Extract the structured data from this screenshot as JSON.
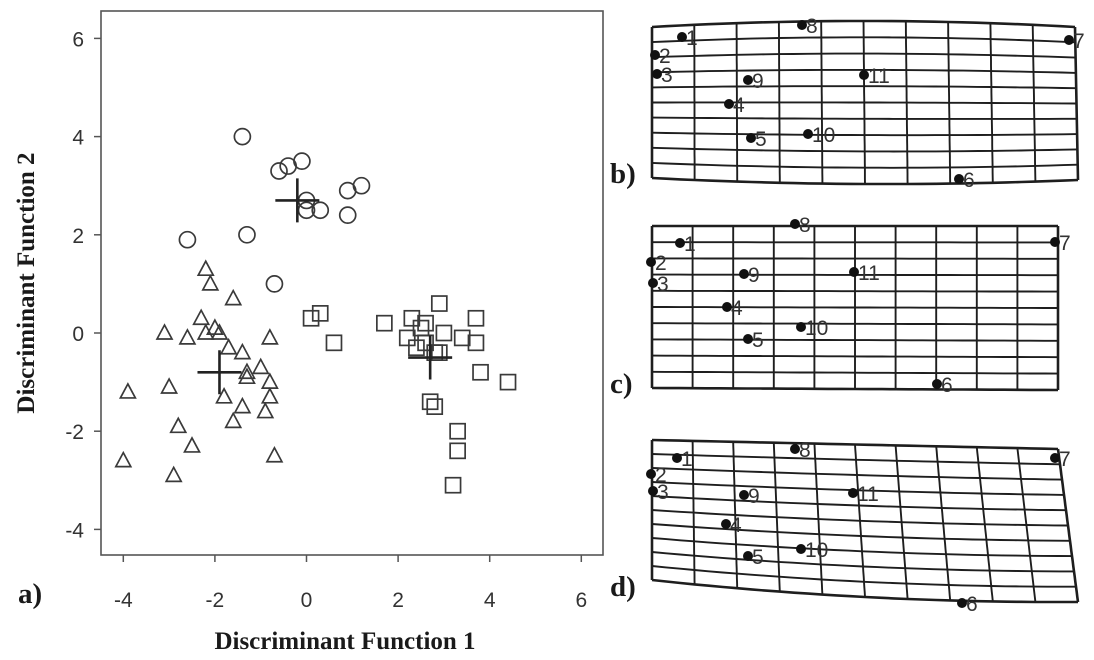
{
  "chart_data": [
    {
      "type": "scatter",
      "panel_label": "a)",
      "xlabel": "Discriminant Function 1",
      "ylabel": "Discriminant Function 2",
      "xlim": [
        -4.5,
        6.5
      ],
      "ylim": [
        -4.5,
        6.5
      ],
      "xticks": [
        -4,
        -2,
        0,
        2,
        4,
        6
      ],
      "yticks": [
        -4,
        -2,
        0,
        2,
        4,
        6
      ],
      "tick_labels_x": [
        "-4",
        "-2",
        "0",
        "2",
        "4",
        "6"
      ],
      "tick_labels_y": [
        "-4",
        "-2",
        "0",
        "2",
        "4",
        "6"
      ],
      "grid": false,
      "series": [
        {
          "marker": "circle",
          "centroid": [
            -0.2,
            2.7
          ],
          "points": [
            [
              -1.4,
              4.0
            ],
            [
              -0.6,
              3.3
            ],
            [
              -0.4,
              3.4
            ],
            [
              -0.1,
              3.5
            ],
            [
              0.0,
              2.7
            ],
            [
              0.0,
              2.5
            ],
            [
              0.3,
              2.5
            ],
            [
              0.9,
              2.9
            ],
            [
              1.2,
              3.0
            ],
            [
              0.9,
              2.4
            ],
            [
              -2.6,
              1.9
            ],
            [
              -1.3,
              2.0
            ],
            [
              -0.7,
              1.0
            ]
          ]
        },
        {
          "marker": "triangle",
          "centroid": [
            -1.9,
            -0.8
          ],
          "points": [
            [
              -2.2,
              1.3
            ],
            [
              -2.1,
              1.0
            ],
            [
              -1.6,
              0.7
            ],
            [
              -2.3,
              0.3
            ],
            [
              -3.1,
              0.0
            ],
            [
              -2.6,
              -0.1
            ],
            [
              -2.2,
              0.0
            ],
            [
              -2.0,
              0.1
            ],
            [
              -1.9,
              0.0
            ],
            [
              -0.8,
              -0.1
            ],
            [
              -1.7,
              -0.3
            ],
            [
              -1.4,
              -0.4
            ],
            [
              -1.3,
              -0.8
            ],
            [
              -1.0,
              -0.7
            ],
            [
              -1.3,
              -0.9
            ],
            [
              -0.8,
              -1.0
            ],
            [
              -3.9,
              -1.2
            ],
            [
              -3.0,
              -1.1
            ],
            [
              -1.8,
              -1.3
            ],
            [
              -0.8,
              -1.3
            ],
            [
              -1.4,
              -1.5
            ],
            [
              -1.6,
              -1.8
            ],
            [
              -0.9,
              -1.6
            ],
            [
              -2.8,
              -1.9
            ],
            [
              -2.5,
              -2.3
            ],
            [
              -0.7,
              -2.5
            ],
            [
              -4.0,
              -2.6
            ],
            [
              -2.9,
              -2.9
            ]
          ]
        },
        {
          "marker": "square",
          "centroid": [
            2.7,
            -0.5
          ],
          "points": [
            [
              0.3,
              0.4
            ],
            [
              0.1,
              0.3
            ],
            [
              0.6,
              -0.2
            ],
            [
              1.7,
              0.2
            ],
            [
              2.2,
              -0.1
            ],
            [
              2.3,
              0.3
            ],
            [
              2.5,
              0.1
            ],
            [
              2.6,
              0.2
            ],
            [
              2.9,
              0.6
            ],
            [
              3.0,
              0.0
            ],
            [
              2.6,
              -0.2
            ],
            [
              2.4,
              -0.3
            ],
            [
              2.8,
              -0.4
            ],
            [
              2.9,
              -0.4
            ],
            [
              3.4,
              -0.1
            ],
            [
              3.7,
              -0.2
            ],
            [
              3.7,
              0.3
            ],
            [
              3.8,
              -0.8
            ],
            [
              4.4,
              -1.0
            ],
            [
              2.7,
              -1.4
            ],
            [
              2.8,
              -1.5
            ],
            [
              3.3,
              -2.0
            ],
            [
              3.3,
              -2.4
            ],
            [
              3.2,
              -3.1
            ]
          ]
        }
      ]
    },
    {
      "type": "diagram",
      "panel_label": "b)",
      "landmarks": [
        {
          "id": "1",
          "label": "1"
        },
        {
          "id": "2",
          "label": "2"
        },
        {
          "id": "3",
          "label": "3"
        },
        {
          "id": "4",
          "label": "4"
        },
        {
          "id": "5",
          "label": "5"
        },
        {
          "id": "6",
          "label": "6"
        },
        {
          "id": "7",
          "label": "7"
        },
        {
          "id": "8",
          "label": "8"
        },
        {
          "id": "9",
          "label": "9"
        },
        {
          "id": "10",
          "label": "10"
        },
        {
          "id": "11",
          "label": "11"
        }
      ]
    },
    {
      "type": "diagram",
      "panel_label": "c)",
      "landmarks": [
        {
          "id": "1",
          "label": "1"
        },
        {
          "id": "2",
          "label": "2"
        },
        {
          "id": "3",
          "label": "3"
        },
        {
          "id": "4",
          "label": "4"
        },
        {
          "id": "5",
          "label": "5"
        },
        {
          "id": "6",
          "label": "6"
        },
        {
          "id": "7",
          "label": "7"
        },
        {
          "id": "8",
          "label": "8"
        },
        {
          "id": "9",
          "label": "9"
        },
        {
          "id": "10",
          "label": "10"
        },
        {
          "id": "11",
          "label": "11"
        }
      ]
    },
    {
      "type": "diagram",
      "panel_label": "d)",
      "landmarks": [
        {
          "id": "1",
          "label": "1"
        },
        {
          "id": "2",
          "label": "2"
        },
        {
          "id": "3",
          "label": "3"
        },
        {
          "id": "4",
          "label": "4"
        },
        {
          "id": "5",
          "label": "5"
        },
        {
          "id": "6",
          "label": "6"
        },
        {
          "id": "7",
          "label": "7"
        },
        {
          "id": "8",
          "label": "8"
        },
        {
          "id": "9",
          "label": "9"
        },
        {
          "id": "10",
          "label": "10"
        },
        {
          "id": "11",
          "label": "11"
        }
      ]
    }
  ]
}
